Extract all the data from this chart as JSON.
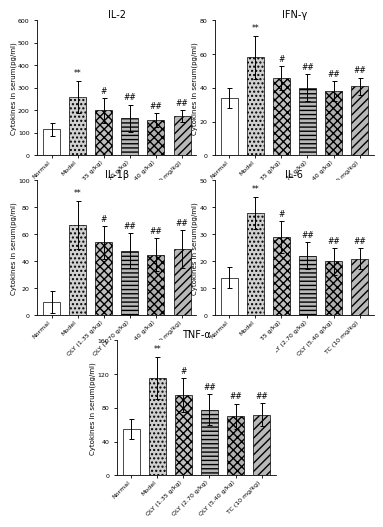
{
  "panels": [
    {
      "title": "IL-2",
      "ylabel": "Cytokines in serum(pg/ml)",
      "ylim": [
        0,
        600
      ],
      "yticks": [
        0,
        100,
        200,
        300,
        400,
        500,
        600
      ],
      "bars": [
        {
          "label": "Normal",
          "mean": 115,
          "sd": 30
        },
        {
          "label": "Model",
          "mean": 260,
          "sd": 70
        },
        {
          "label": "QLY (1.35 g/kg)",
          "mean": 200,
          "sd": 55
        },
        {
          "label": "QLY (2.70 g/kg)",
          "mean": 165,
          "sd": 60
        },
        {
          "label": "QLY (5.40 g/kg)",
          "mean": 158,
          "sd": 30
        },
        {
          "label": "TC (10 mg/kg)",
          "mean": 175,
          "sd": 25
        }
      ],
      "sig_model": "**",
      "sig_treatments": [
        "#",
        "##",
        "##",
        "##"
      ]
    },
    {
      "title": "IFN-γ",
      "ylabel": "Cytokines in serum(pg/ml)",
      "ylim": [
        0,
        80
      ],
      "yticks": [
        0,
        20,
        40,
        60,
        80
      ],
      "bars": [
        {
          "label": "Normal",
          "mean": 34,
          "sd": 6
        },
        {
          "label": "Model",
          "mean": 58,
          "sd": 13
        },
        {
          "label": "QLY (1.35 g/kg)",
          "mean": 46,
          "sd": 7
        },
        {
          "label": "QLY (2.70 g/kg)",
          "mean": 40,
          "sd": 8
        },
        {
          "label": "QLY (5.40 g/kg)",
          "mean": 38,
          "sd": 6
        },
        {
          "label": "TC (10 mg/kg)",
          "mean": 41,
          "sd": 5
        }
      ],
      "sig_model": "**",
      "sig_treatments": [
        "#",
        "##",
        "##",
        "##"
      ]
    },
    {
      "title": "IL-1β",
      "ylabel": "Cytokines in serum(pg/ml)",
      "ylim": [
        0,
        100
      ],
      "yticks": [
        0,
        20,
        40,
        60,
        80,
        100
      ],
      "bars": [
        {
          "label": "Normal",
          "mean": 10,
          "sd": 8
        },
        {
          "label": "Model",
          "mean": 67,
          "sd": 18
        },
        {
          "label": "QLY (1.35 g/kg)",
          "mean": 54,
          "sd": 12
        },
        {
          "label": "QLY (2.70 g/kg)",
          "mean": 48,
          "sd": 13
        },
        {
          "label": "QLY (5.40 g/kg)",
          "mean": 45,
          "sd": 12
        },
        {
          "label": "TC (10 mg/kg)",
          "mean": 49,
          "sd": 14
        }
      ],
      "sig_model": "**",
      "sig_treatments": [
        "#",
        "##",
        "##",
        "##"
      ]
    },
    {
      "title": "IL-6",
      "ylabel": "Cytokines in serum(pg/ml)",
      "ylim": [
        0,
        50
      ],
      "yticks": [
        0,
        10,
        20,
        30,
        40,
        50
      ],
      "bars": [
        {
          "label": "Normal",
          "mean": 14,
          "sd": 4
        },
        {
          "label": "Model",
          "mean": 38,
          "sd": 6
        },
        {
          "label": "QLY (1.35 g/kg)",
          "mean": 29,
          "sd": 6
        },
        {
          "label": "QLY (2.70 g/kg)",
          "mean": 22,
          "sd": 5
        },
        {
          "label": "QLY (5.40 g/kg)",
          "mean": 20,
          "sd": 5
        },
        {
          "label": "TC (10 mg/kg)",
          "mean": 21,
          "sd": 4
        }
      ],
      "sig_model": "**",
      "sig_treatments": [
        "#",
        "##",
        "##",
        "##"
      ]
    },
    {
      "title": "TNF-α",
      "ylabel": "Cytokines in serum(pg/ml)",
      "ylim": [
        0,
        160
      ],
      "yticks": [
        0,
        40,
        80,
        120,
        160
      ],
      "bars": [
        {
          "label": "Normal",
          "mean": 55,
          "sd": 12
        },
        {
          "label": "Model",
          "mean": 115,
          "sd": 25
        },
        {
          "label": "QLY (1.35 g/kg)",
          "mean": 95,
          "sd": 20
        },
        {
          "label": "QLY (2.70 g/kg)",
          "mean": 78,
          "sd": 18
        },
        {
          "label": "QLY (5.40 g/kg)",
          "mean": 70,
          "sd": 15
        },
        {
          "label": "TC (10 mg/kg)",
          "mean": 72,
          "sd": 14
        }
      ],
      "sig_model": "**",
      "sig_treatments": [
        "#",
        "##",
        "##",
        "##"
      ]
    }
  ],
  "xticklabels": [
    "Normal",
    "Model",
    "QLY (1.35 g/kg)",
    "QLY (2.70 g/kg)",
    "QLY (5.40 g/kg)",
    "TC (10 mg/kg)"
  ],
  "hatch_patterns": [
    "",
    "....",
    "xxxx",
    "----",
    "xxxx",
    "////"
  ],
  "bar_colors": [
    "#ffffff",
    "#d0d0d0",
    "#c0c0c0",
    "#b8b8b8",
    "#b0b0b0",
    "#b8b8b8"
  ],
  "bar_edge_color": "#000000",
  "error_bar_color": "#000000",
  "bar_width": 0.65,
  "fontsize_title": 7,
  "fontsize_tick": 4.5,
  "fontsize_ylabel": 5,
  "fontsize_sig": 5.5,
  "fig_bg": "#ffffff"
}
